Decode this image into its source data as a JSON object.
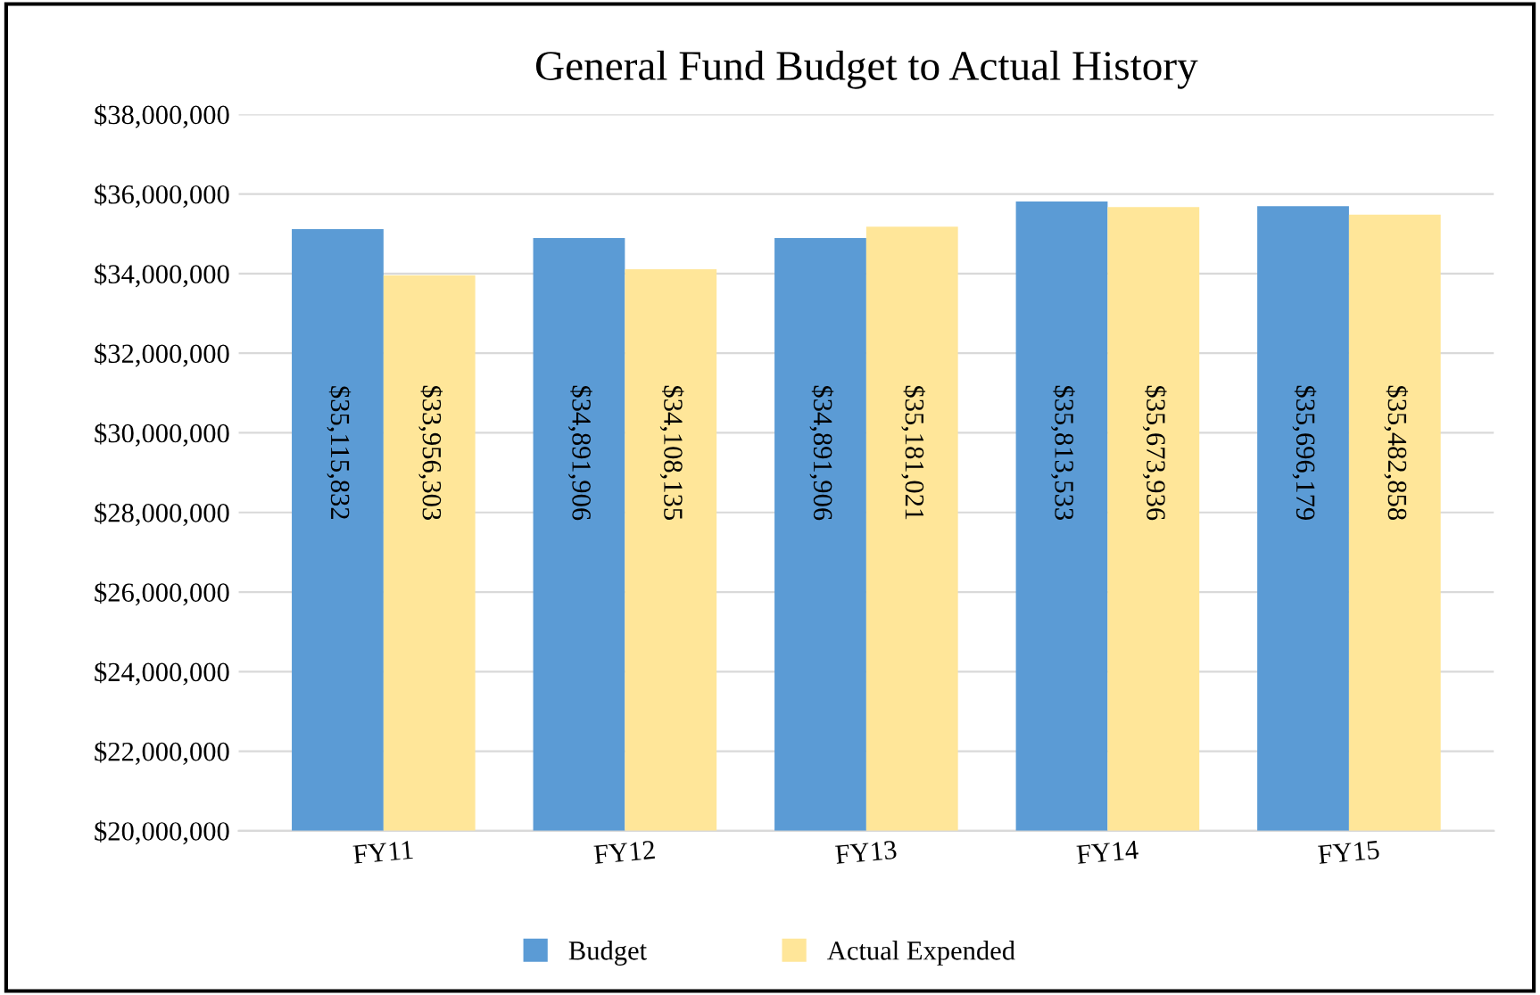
{
  "chart_data": {
    "type": "bar",
    "title": "General Fund Budget to Actual History",
    "categories": [
      "FY11",
      "FY12",
      "FY13",
      "FY14",
      "FY15"
    ],
    "series": [
      {
        "name": "Budget",
        "color": "#5b9bd5",
        "values": [
          35115832,
          34891906,
          34891906,
          35813533,
          35696179
        ],
        "value_labels": [
          "$35,115,832",
          "$34,891,906",
          "$34,891,906",
          "$35,813,533",
          "$35,696,179"
        ]
      },
      {
        "name": "Actual Expended",
        "color": "#ffe699",
        "values": [
          33956303,
          34108135,
          35181021,
          35673936,
          35482858
        ],
        "value_labels": [
          "$33,956,303",
          "$34,108,135",
          "$35,181,021",
          "$35,673,936",
          "$35,482,858"
        ]
      }
    ],
    "ylim": [
      20000000,
      38000000
    ],
    "yticks": [
      {
        "value": 20000000,
        "label": "$20,000,000"
      },
      {
        "value": 22000000,
        "label": "$22,000,000"
      },
      {
        "value": 24000000,
        "label": "$24,000,000"
      },
      {
        "value": 26000000,
        "label": "$26,000,000"
      },
      {
        "value": 28000000,
        "label": "$28,000,000"
      },
      {
        "value": 30000000,
        "label": "$30,000,000"
      },
      {
        "value": 32000000,
        "label": "$32,000,000"
      },
      {
        "value": 34000000,
        "label": "$34,000,000"
      },
      {
        "value": 36000000,
        "label": "$36,000,000"
      },
      {
        "value": 38000000,
        "label": "$38,000,000"
      }
    ],
    "grid": "y",
    "legend": "bottom"
  }
}
